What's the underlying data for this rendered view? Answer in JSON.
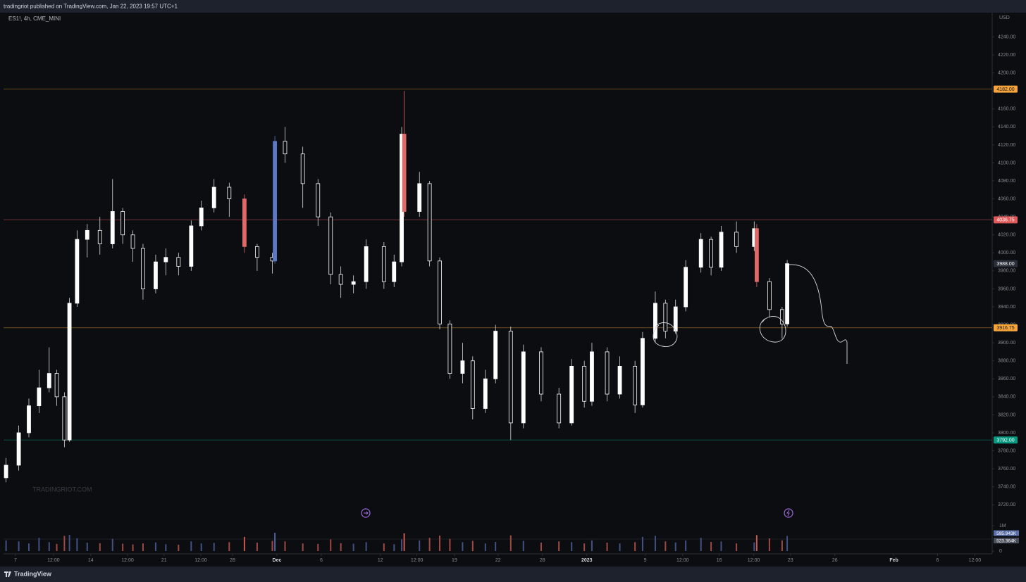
{
  "header": {
    "publisher": "tradingriot published on TradingView.com, Jan 22, 2023 19:57 UTC+1"
  },
  "footer": {
    "brand": "TradingView"
  },
  "chart_data": {
    "type": "candlestick",
    "symbol": "ES1!, 4h, CME_MINI",
    "currency": "USD",
    "watermark": "TRADINGRIOT.COM",
    "xlim": [
      0,
      389
    ],
    "xticks": [
      {
        "value": 4.7,
        "label": "7"
      },
      {
        "value": 19.7,
        "label": "12:00"
      },
      {
        "value": 34.4,
        "label": "14"
      },
      {
        "value": 48.9,
        "label": "12:00"
      },
      {
        "value": 63.3,
        "label": "21"
      },
      {
        "value": 77.8,
        "label": "12:00"
      },
      {
        "value": 90.3,
        "label": "28"
      },
      {
        "value": 107.8,
        "label": "Dec"
      },
      {
        "value": 125.3,
        "label": "6"
      },
      {
        "value": 148.6,
        "label": "12"
      },
      {
        "value": 163,
        "label": "12:00"
      },
      {
        "value": 177.8,
        "label": "19"
      },
      {
        "value": 195,
        "label": "22"
      },
      {
        "value": 212.5,
        "label": "28"
      },
      {
        "value": 230,
        "label": "2023"
      },
      {
        "value": 253,
        "label": "9"
      },
      {
        "value": 267.8,
        "label": "12:00"
      },
      {
        "value": 282.2,
        "label": "16"
      },
      {
        "value": 295.8,
        "label": "12:00"
      },
      {
        "value": 310.3,
        "label": "23"
      },
      {
        "value": 327.8,
        "label": "26"
      },
      {
        "value": 351.1,
        "label": "Feb"
      },
      {
        "value": 368.3,
        "label": "6"
      },
      {
        "value": 383,
        "label": "12:00"
      }
    ],
    "ylim": [
      3667,
      4267
    ],
    "yticks": [
      {
        "value": 3720,
        "label": "3720.00"
      },
      {
        "value": 3740,
        "label": "3740.00"
      },
      {
        "value": 3760,
        "label": "3760.00"
      },
      {
        "value": 3780,
        "label": "3780.00"
      },
      {
        "value": 3800,
        "label": "3800.00"
      },
      {
        "value": 3820,
        "label": "3820.00"
      },
      {
        "value": 3840,
        "label": "3840.00"
      },
      {
        "value": 3860,
        "label": "3860.00"
      },
      {
        "value": 3880,
        "label": "3880.00"
      },
      {
        "value": 3900,
        "label": "3900.00"
      },
      {
        "value": 3920,
        "label": "3920.00"
      },
      {
        "value": 3940,
        "label": "3940.00"
      },
      {
        "value": 3960,
        "label": "3960.00"
      },
      {
        "value": 3980,
        "label": "3980.00"
      },
      {
        "value": 4000,
        "label": "4000.00"
      },
      {
        "value": 4020,
        "label": "4020.00"
      },
      {
        "value": 4040,
        "label": "4040.00"
      },
      {
        "value": 4060,
        "label": "4060.00"
      },
      {
        "value": 4080,
        "label": "4080.00"
      },
      {
        "value": 4100,
        "label": "4100.00"
      },
      {
        "value": 4120,
        "label": "4120.00"
      },
      {
        "value": 4140,
        "label": "4140.00"
      },
      {
        "value": 4160,
        "label": "4160.00"
      },
      {
        "value": 4180,
        "label": "4180.00"
      },
      {
        "value": 4200,
        "label": "4200.00"
      },
      {
        "value": 4220,
        "label": "4220.00"
      },
      {
        "value": 4240,
        "label": "4240.00"
      }
    ],
    "up_color": "#ffffff",
    "down_color": "#0c0d10",
    "candles": {
      "x": [
        1,
        6,
        10,
        14,
        18,
        21,
        24,
        26,
        29,
        33,
        38,
        43,
        47,
        51,
        55,
        60,
        64,
        69,
        74,
        78,
        83,
        89,
        95,
        100,
        106,
        107,
        111,
        118,
        124,
        129,
        133,
        138,
        143,
        150,
        154,
        157,
        158,
        164,
        168,
        172,
        176,
        181,
        185,
        190,
        194,
        200,
        205,
        212,
        219,
        224,
        229,
        232,
        238,
        243,
        249,
        252,
        257,
        261,
        265,
        269,
        275,
        279,
        283,
        289,
        296,
        297,
        302,
        307,
        309
      ],
      "open": [
        3750,
        3764,
        3800,
        3830,
        3850,
        3866,
        3840,
        3792,
        3944,
        4015,
        4025,
        4010,
        4046,
        4020,
        4005,
        3960,
        3990,
        3995,
        3985,
        4030,
        4050,
        4073,
        4060,
        4007,
        3995,
        3991,
        4124,
        4110,
        4077,
        4040,
        3976,
        3965,
        3968,
        4007,
        3968,
        3990,
        4132,
        4046,
        4077,
        3991,
        3921,
        3866,
        3880,
        3827,
        3860,
        3913,
        3811,
        3890,
        3843,
        3811,
        3874,
        3835,
        3890,
        3843,
        3874,
        3831,
        3905,
        3944,
        3913,
        3940,
        3984,
        4015,
        3984,
        4023,
        4007,
        4027,
        3968,
        3937,
        3921
      ],
      "high": [
        3772,
        3808,
        3838,
        3870,
        3895,
        3870,
        3845,
        3950,
        4025,
        4032,
        4040,
        4082,
        4050,
        4025,
        4010,
        3998,
        4005,
        4000,
        4036,
        4058,
        4082,
        4078,
        4065,
        4010,
        4000,
        4130,
        4140,
        4118,
        4082,
        4045,
        3985,
        3975,
        4015,
        4012,
        3998,
        4140,
        4180,
        4090,
        4080,
        3995,
        3925,
        3900,
        3885,
        3870,
        3920,
        3918,
        3898,
        3895,
        3850,
        3882,
        3880,
        3900,
        3895,
        3885,
        3880,
        3912,
        3957,
        3948,
        3948,
        3992,
        4022,
        4018,
        4030,
        4035,
        4035,
        4032,
        3972,
        3940,
        3992
      ],
      "low": [
        3745,
        3758,
        3795,
        3822,
        3845,
        3830,
        3784,
        3790,
        3940,
        3995,
        3998,
        4005,
        4010,
        3990,
        3948,
        3955,
        3975,
        3975,
        3980,
        4025,
        4045,
        4040,
        4000,
        3980,
        3977,
        3988,
        4100,
        4050,
        4030,
        3965,
        3950,
        3955,
        3960,
        3960,
        3962,
        3985,
        4040,
        4040,
        3985,
        3915,
        3860,
        3855,
        3815,
        3822,
        3855,
        3792,
        3805,
        3835,
        3805,
        3808,
        3828,
        3830,
        3835,
        3838,
        3822,
        3828,
        3900,
        3905,
        3910,
        3935,
        3978,
        3975,
        3980,
        4000,
        4002,
        3962,
        3928,
        3905,
        3918
      ],
      "close": [
        3764,
        3800,
        3830,
        3850,
        3866,
        3840,
        3792,
        3944,
        4015,
        4025,
        4010,
        4046,
        4020,
        4005,
        3960,
        3990,
        3995,
        3985,
        4030,
        4050,
        4073,
        4060,
        4007,
        3995,
        3991,
        4124,
        4110,
        4077,
        4040,
        3976,
        3965,
        3968,
        4007,
        3968,
        3990,
        4132,
        4046,
        4077,
        3991,
        3921,
        3866,
        3880,
        3827,
        3860,
        3913,
        3811,
        3890,
        3843,
        3811,
        3874,
        3835,
        3890,
        3843,
        3874,
        3831,
        3905,
        3944,
        3913,
        3940,
        3984,
        4015,
        3984,
        4023,
        4007,
        4027,
        3968,
        3937,
        3921,
        3988
      ],
      "volume": [
        420000,
        380000,
        300000,
        520000,
        350000,
        280000,
        600000,
        640000,
        500000,
        330000,
        310000,
        480000,
        290000,
        260000,
        300000,
        340000,
        270000,
        250000,
        380000,
        300000,
        320000,
        350000,
        560000,
        330000,
        400000,
        720000,
        380000,
        300000,
        280000,
        460000,
        310000,
        290000,
        350000,
        300000,
        270000,
        460000,
        700000,
        420000,
        520000,
        610000,
        480000,
        350000,
        400000,
        300000,
        360000,
        620000,
        400000,
        330000,
        380000,
        350000,
        300000,
        420000,
        330000,
        300000,
        350000,
        560000,
        600000,
        380000,
        340000,
        420000,
        520000,
        360000,
        380000,
        300000,
        340000,
        630000,
        500000,
        420000,
        595943
      ]
    },
    "highlights": [
      {
        "candle": 22,
        "color": "#e06a6a"
      },
      {
        "candle": 25,
        "color": "#5b79c6"
      },
      {
        "candle": 36,
        "color": "#e06a6a"
      },
      {
        "candle": 65,
        "color": "#e06a6a"
      }
    ],
    "price_lines": [
      {
        "value": 4182,
        "label": "4182.00",
        "color": "#f7a53a",
        "text_color": "#131722",
        "line": true
      },
      {
        "value": 4036.75,
        "label": "4036.75",
        "color": "#e05a5a",
        "text_color": "#ffffff",
        "line": true
      },
      {
        "value": 3988,
        "label": "3988.00",
        "color": "#2a2e39",
        "text_color": "#ffffff",
        "line": false
      },
      {
        "value": 3916.75,
        "label": "3916.75",
        "color": "#f7a53a",
        "text_color": "#131722",
        "line": true
      },
      {
        "value": 3792,
        "label": "3792.00",
        "color": "#089981",
        "text_color": "#ffffff",
        "line": true
      }
    ],
    "volume_ylim": [
      0,
      1000000
    ],
    "volume_yticks": [
      0,
      {
        "value": 1000000,
        "label": "1M"
      }
    ],
    "volume_up_color": "#4f63a0",
    "volume_down_color": "#c8574f",
    "volume_markers": [
      {
        "value": 595943,
        "label": "595.943K",
        "color": "#5b6fa8"
      },
      {
        "value": 523364,
        "label": "523.364K",
        "color": "#4a4f5c"
      }
    ]
  }
}
